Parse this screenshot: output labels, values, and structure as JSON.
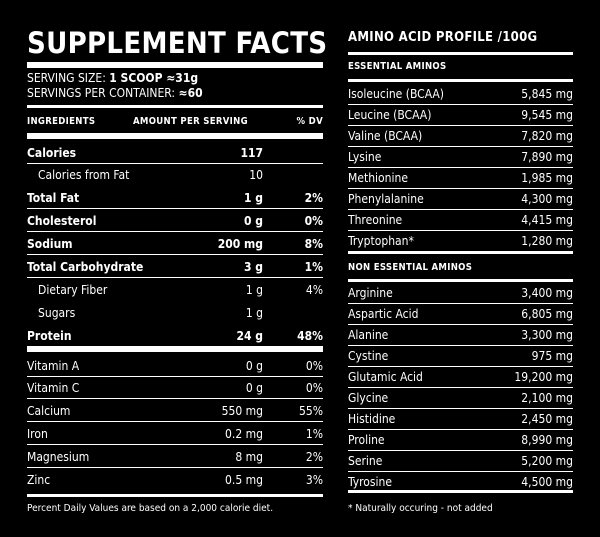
{
  "supplement": {
    "title": "SUPPLEMENT FACTS",
    "serving_size_label": "SERVING SIZE:",
    "serving_size_value": "1 SCOOP ≈31g",
    "servings_label": "SERVINGS PER CONTAINER:",
    "servings_value": "≈60",
    "headers": {
      "ingredients": "INGREDIENTS",
      "amount": "AMOUNT PER SERVING",
      "dv": "% DV"
    },
    "rows": [
      {
        "name": "Calories",
        "amount": "117",
        "dv": ""
      },
      {
        "name": "Calories from Fat",
        "amount": "10",
        "dv": ""
      },
      {
        "name": "Total Fat",
        "amount": "1 g",
        "dv": "2%"
      },
      {
        "name": "Cholesterol",
        "amount": "0 g",
        "dv": "0%"
      },
      {
        "name": "Sodium",
        "amount": "200 mg",
        "dv": "8%"
      },
      {
        "name": "Total Carbohydrate",
        "amount": "3 g",
        "dv": "1%"
      },
      {
        "name": "Dietary Fiber",
        "amount": "1 g",
        "dv": "4%"
      },
      {
        "name": "Sugars",
        "amount": "1 g",
        "dv": ""
      },
      {
        "name": "Protein",
        "amount": "24 g",
        "dv": "48%"
      },
      {
        "name": "Vitamin A",
        "amount": "0 g",
        "dv": "0%"
      },
      {
        "name": "Vitamin C",
        "amount": "0 g",
        "dv": "0%"
      },
      {
        "name": "Calcium",
        "amount": "550 mg",
        "dv": "55%"
      },
      {
        "name": "Iron",
        "amount": "0.2 mg",
        "dv": "1%"
      },
      {
        "name": "Magnesium",
        "amount": "8 mg",
        "dv": "2%"
      },
      {
        "name": "Zinc",
        "amount": "0.5 mg",
        "dv": "3%"
      }
    ],
    "footnote": "Percent Daily Values are based on a 2,000 calorie diet."
  },
  "amino": {
    "title": "AMINO ACID PROFILE /100G",
    "essential_label": "ESSENTIAL AMINOS",
    "essential": [
      {
        "name": "Isoleucine (BCAA)",
        "amount": "5,845 mg"
      },
      {
        "name": "Leucine (BCAA)",
        "amount": "9,545 mg"
      },
      {
        "name": "Valine (BCAA)",
        "amount": "7,820 mg"
      },
      {
        "name": "Lysine",
        "amount": "7,890 mg"
      },
      {
        "name": "Methionine",
        "amount": "1,985 mg"
      },
      {
        "name": "Phenylalanine",
        "amount": "4,300 mg"
      },
      {
        "name": "Threonine",
        "amount": "4,415 mg"
      },
      {
        "name": "Tryptophan*",
        "amount": "1,280 mg"
      }
    ],
    "nonessential_label": "NON ESSENTIAL AMINOS",
    "nonessential": [
      {
        "name": "Arginine",
        "amount": "3,400 mg"
      },
      {
        "name": "Aspartic Acid",
        "amount": "6,805 mg"
      },
      {
        "name": "Alanine",
        "amount": "3,300 mg"
      },
      {
        "name": "Cystine",
        "amount": "975 mg"
      },
      {
        "name": "Glutamic Acid",
        "amount": "19,200 mg"
      },
      {
        "name": "Glycine",
        "amount": "2,100 mg"
      },
      {
        "name": "Histidine",
        "amount": "2,450 mg"
      },
      {
        "name": "Proline",
        "amount": "8,990 mg"
      },
      {
        "name": "Serine",
        "amount": "5,200 mg"
      },
      {
        "name": "Tyrosine",
        "amount": "4,500 mg"
      }
    ],
    "footnote": "*  Naturally occuring - not added"
  }
}
